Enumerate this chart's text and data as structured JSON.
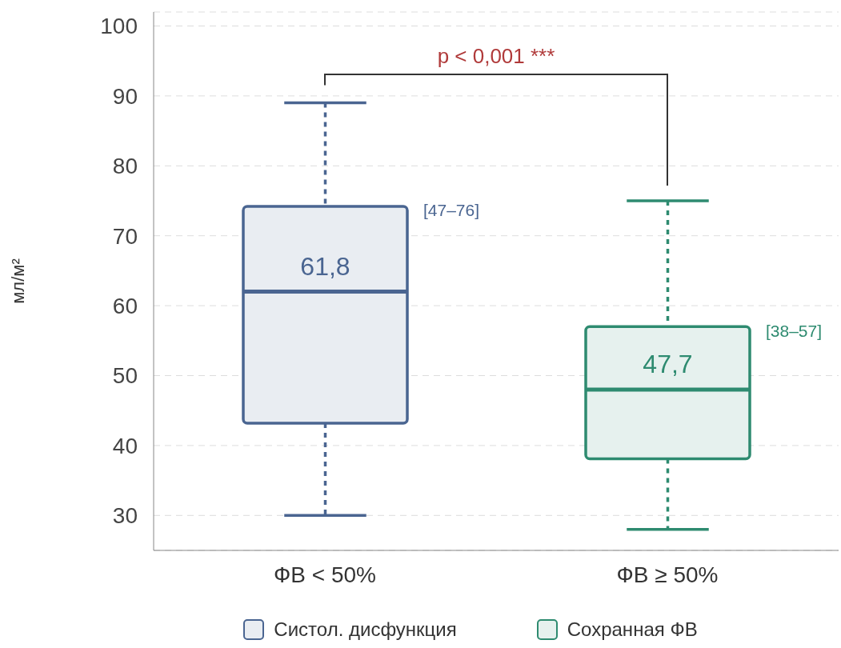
{
  "chart_data": {
    "type": "box",
    "ylabel": "мл/м²",
    "categories": [
      "ФВ < 50%",
      "ФВ ≥ 50%"
    ],
    "series": [
      {
        "name": "Систол. дисфункция",
        "color": "#4a6591",
        "boxes": [
          {
            "low": 30,
            "q1": 43.2,
            "median": 62,
            "q3": 74.2,
            "high": 89
          },
          null
        ]
      },
      {
        "name": "Сохранная ФВ",
        "color": "#2e8b70",
        "boxes": [
          null,
          {
            "low": 28,
            "q1": 38.1,
            "median": 48,
            "q3": 57,
            "high": 75
          }
        ]
      }
    ],
    "ylim": [
      25,
      102
    ],
    "yticks": [
      30,
      40,
      50,
      60,
      70,
      80,
      90,
      100
    ],
    "grid": "y",
    "legend": "bottom",
    "annotations": [
      "61,8",
      "[47–76]",
      "47,7",
      "[38–57]",
      "p < 0,001 ***"
    ]
  }
}
